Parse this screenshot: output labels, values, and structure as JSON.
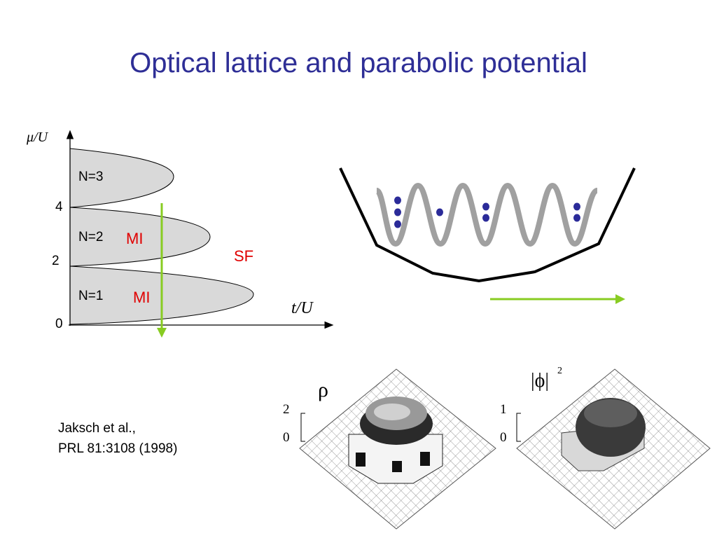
{
  "slide": {
    "title": "Optical lattice and parabolic potential"
  },
  "phase_diagram": {
    "y_axis_label": "μ/U",
    "x_axis_label": "t/U",
    "y_ticks": [
      "0",
      "2",
      "4"
    ],
    "lobe_labels": [
      "N=1",
      "N=2",
      "N=3"
    ],
    "mi_labels": [
      "MI",
      "MI"
    ],
    "sf_label": "SF"
  },
  "density_plots": {
    "rho_label": "ρ",
    "rho_scale": [
      "2",
      "0"
    ],
    "phi_label": "|ϕ|",
    "phi_exponent": "2",
    "phi_scale": [
      "1",
      "0"
    ]
  },
  "reference": {
    "line1": "Jaksch et al.,",
    "line2": "PRL 81:3108 (1998)"
  },
  "colors": {
    "title": "#2e2e96",
    "mi_sf_text": "#e00000",
    "arrow_green": "#88cc22",
    "atoms": "#2b2b99",
    "lattice": "#a0a0a0",
    "lobe_fill": "#d9d9d9"
  }
}
